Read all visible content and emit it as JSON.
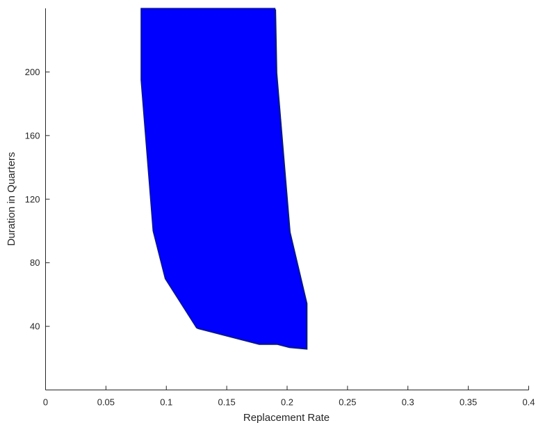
{
  "chart_data": {
    "type": "area",
    "title": "",
    "xlabel": "Replacement Rate",
    "ylabel": "Duration in Quarters",
    "xlim": [
      0,
      0.4
    ],
    "ylim": [
      0,
      240
    ],
    "x_ticks": [
      0,
      0.05,
      0.1,
      0.15,
      0.2,
      0.25,
      0.3,
      0.35,
      0.4
    ],
    "x_tick_labels": [
      "0",
      "0.05",
      "0.1",
      "0.15",
      "0.2",
      "0.25",
      "0.3",
      "0.35",
      "0.4"
    ],
    "y_ticks": [
      40,
      80,
      120,
      160,
      200
    ],
    "y_tick_labels": [
      "40",
      "80",
      "120",
      "160",
      "200"
    ],
    "grid": false,
    "legend": "none",
    "series": [
      {
        "color": "#0000ff",
        "edge_color": "#0a1a7a",
        "points": [
          {
            "x": 0.079,
            "y": 240
          },
          {
            "x": 0.19,
            "y": 240
          },
          {
            "x": 0.191,
            "y": 200
          },
          {
            "x": 0.202,
            "y": 100
          },
          {
            "x": 0.216,
            "y": 55
          },
          {
            "x": 0.216,
            "y": 26
          },
          {
            "x": 0.201,
            "y": 27
          },
          {
            "x": 0.191,
            "y": 29
          },
          {
            "x": 0.176,
            "y": 29
          },
          {
            "x": 0.125,
            "y": 39
          },
          {
            "x": 0.099,
            "y": 70
          },
          {
            "x": 0.089,
            "y": 100
          },
          {
            "x": 0.079,
            "y": 195
          }
        ]
      }
    ]
  }
}
